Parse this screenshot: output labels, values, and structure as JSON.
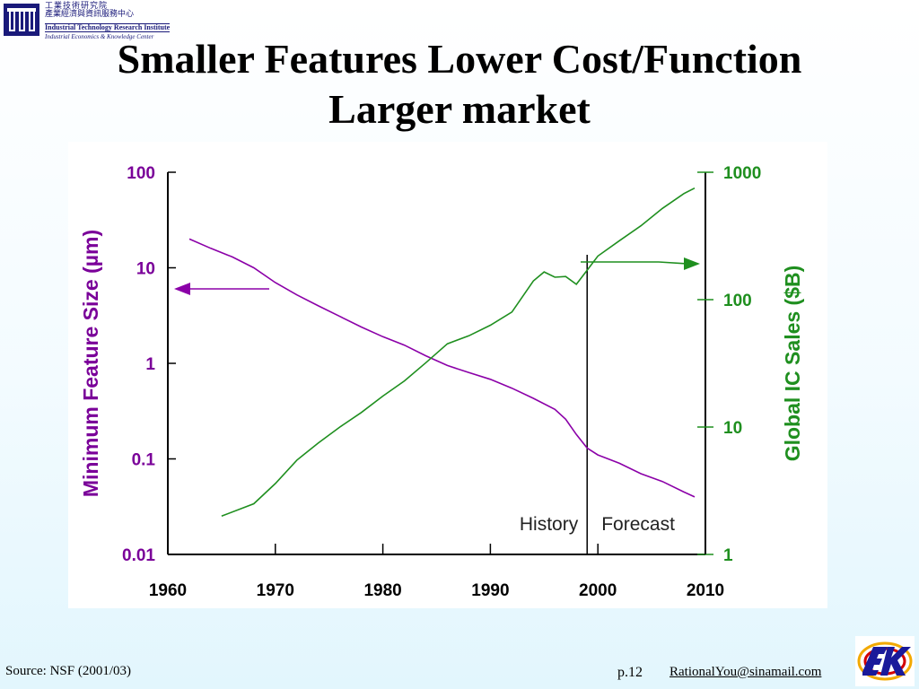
{
  "header": {
    "org_line1": "工業技術研究院",
    "org_line2": "產業經濟與資訊服務中心",
    "org_line3": "Industrial Technology Research Institute",
    "org_line4": "Industrial Economics & Knowledge Center",
    "title_line1": "Smaller Features Lower Cost/Function",
    "title_line2": "Larger market"
  },
  "footer": {
    "source": "Source: NSF (2001/03)",
    "page": "p.12",
    "email": "RationalYou@sinamail.com"
  },
  "colors": {
    "feature": "#8b00a8",
    "sales": "#1f8f1f",
    "axis_left": "#7a0099",
    "axis_right": "#1f8f1f"
  },
  "chart_data": {
    "type": "line",
    "x_ticks": [
      "1960",
      "1970",
      "1980",
      "1990",
      "2000",
      "2010"
    ],
    "xlim": [
      1960,
      2010
    ],
    "left_axis": {
      "label": "Minimum Feature Size (µm)",
      "ticks": [
        "100",
        "10",
        "1",
        "0.1",
        "0.01"
      ],
      "range": [
        0.01,
        100
      ],
      "scale": "log"
    },
    "right_axis": {
      "label": "Global IC Sales ($B)",
      "ticks": [
        "1000",
        "100",
        "10",
        "1"
      ],
      "range": [
        1,
        1000
      ],
      "scale": "log"
    },
    "annotations": {
      "history": "History",
      "forecast": "Forecast",
      "divider_year": 1999
    },
    "series": [
      {
        "axis": "left",
        "x": [
          1962,
          1964,
          1966,
          1968,
          1970,
          1972,
          1974,
          1976,
          1978,
          1980,
          1982,
          1984,
          1986,
          1988,
          1990,
          1992,
          1994,
          1996,
          1997,
          1998,
          1999,
          2000,
          2002,
          2004,
          2006,
          2008,
          2009
        ],
        "values": [
          20,
          16,
          13,
          10,
          7,
          5.2,
          4,
          3.1,
          2.4,
          1.9,
          1.55,
          1.2,
          0.95,
          0.8,
          0.68,
          0.55,
          0.43,
          0.33,
          0.26,
          0.18,
          0.13,
          0.11,
          0.09,
          0.07,
          0.058,
          0.045,
          0.04
        ]
      },
      {
        "axis": "right",
        "x": [
          1965,
          1968,
          1970,
          1972,
          1974,
          1976,
          1978,
          1980,
          1982,
          1984,
          1986,
          1988,
          1990,
          1992,
          1994,
          1995,
          1996,
          1997,
          1998,
          1999,
          2000,
          2002,
          2004,
          2006,
          2008,
          2009
        ],
        "values": [
          2,
          2.5,
          3.6,
          5.5,
          7.5,
          10,
          13,
          17.5,
          23,
          32,
          45,
          52,
          63,
          80,
          140,
          165,
          150,
          152,
          132,
          170,
          220,
          290,
          380,
          520,
          680,
          750
        ]
      }
    ]
  }
}
